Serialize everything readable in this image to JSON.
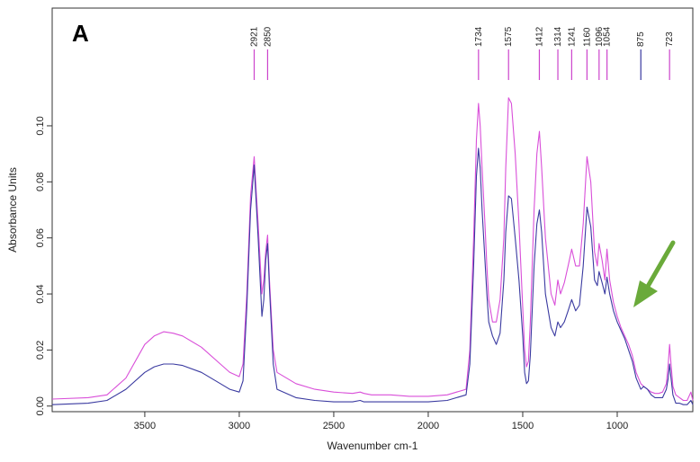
{
  "panel_label": "A",
  "chart_data": {
    "type": "line",
    "xlabel": "Wavenumber cm-1",
    "ylabel": "Absorbance Units",
    "xlim": [
      3990,
      600
    ],
    "ylim": [
      -0.002,
      0.142
    ],
    "x_reversed": true,
    "grid": false,
    "x_ticks": [
      3500,
      3000,
      2500,
      2000,
      1500,
      1000
    ],
    "y_ticks": [
      0.0,
      0.02,
      0.04,
      0.06,
      0.08,
      0.1
    ],
    "y_tick_labels": [
      "0.00",
      "0.02",
      "0.04",
      "0.06",
      "0.08",
      "0.10"
    ],
    "peak_labels": [
      {
        "x": 2921,
        "label": "2921",
        "color": "#cc44cc"
      },
      {
        "x": 2850,
        "label": "2850",
        "color": "#cc44cc"
      },
      {
        "x": 1734,
        "label": "1734",
        "color": "#cc44cc"
      },
      {
        "x": 1575,
        "label": "1575",
        "color": "#cc44cc"
      },
      {
        "x": 1412,
        "label": "1412",
        "color": "#cc44cc"
      },
      {
        "x": 1314,
        "label": "1314",
        "color": "#cc44cc"
      },
      {
        "x": 1241,
        "label": "1241",
        "color": "#cc44cc"
      },
      {
        "x": 1160,
        "label": "1160",
        "color": "#cc44cc"
      },
      {
        "x": 1096,
        "label": "1096",
        "color": "#cc44cc"
      },
      {
        "x": 1054,
        "label": "1054",
        "color": "#cc44cc"
      },
      {
        "x": 875,
        "label": "875",
        "color": "#3a3aa0"
      },
      {
        "x": 723,
        "label": "723",
        "color": "#cc44cc"
      }
    ],
    "series": [
      {
        "color": "#d94fd9",
        "x": [
          3990,
          3800,
          3700,
          3600,
          3500,
          3450,
          3400,
          3350,
          3300,
          3200,
          3100,
          3050,
          3000,
          2980,
          2960,
          2940,
          2921,
          2900,
          2880,
          2870,
          2860,
          2850,
          2840,
          2820,
          2800,
          2700,
          2600,
          2500,
          2400,
          2360,
          2340,
          2300,
          2200,
          2100,
          2000,
          1900,
          1800,
          1780,
          1760,
          1745,
          1734,
          1725,
          1715,
          1700,
          1690,
          1680,
          1660,
          1640,
          1620,
          1600,
          1590,
          1575,
          1560,
          1540,
          1520,
          1500,
          1490,
          1480,
          1470,
          1460,
          1440,
          1425,
          1412,
          1400,
          1380,
          1350,
          1330,
          1314,
          1300,
          1280,
          1260,
          1241,
          1220,
          1200,
          1180,
          1160,
          1140,
          1120,
          1105,
          1096,
          1080,
          1065,
          1054,
          1040,
          1020,
          1000,
          980,
          960,
          940,
          920,
          900,
          875,
          860,
          840,
          820,
          800,
          780,
          760,
          740,
          730,
          723,
          715,
          705,
          690,
          670,
          650,
          630,
          610,
          600
        ],
        "y": [
          0.0025,
          0.003,
          0.004,
          0.01,
          0.022,
          0.025,
          0.0265,
          0.026,
          0.025,
          0.021,
          0.015,
          0.012,
          0.0105,
          0.015,
          0.04,
          0.075,
          0.089,
          0.065,
          0.04,
          0.045,
          0.055,
          0.061,
          0.045,
          0.02,
          0.012,
          0.008,
          0.006,
          0.005,
          0.0045,
          0.005,
          0.0045,
          0.004,
          0.004,
          0.0035,
          0.0035,
          0.004,
          0.006,
          0.02,
          0.06,
          0.095,
          0.108,
          0.1,
          0.085,
          0.065,
          0.05,
          0.038,
          0.03,
          0.03,
          0.038,
          0.06,
          0.085,
          0.11,
          0.108,
          0.09,
          0.065,
          0.035,
          0.02,
          0.014,
          0.016,
          0.03,
          0.07,
          0.09,
          0.098,
          0.085,
          0.06,
          0.04,
          0.036,
          0.045,
          0.04,
          0.044,
          0.05,
          0.056,
          0.05,
          0.05,
          0.065,
          0.089,
          0.08,
          0.055,
          0.05,
          0.058,
          0.052,
          0.045,
          0.056,
          0.045,
          0.037,
          0.032,
          0.028,
          0.025,
          0.022,
          0.018,
          0.012,
          0.008,
          0.007,
          0.006,
          0.005,
          0.0045,
          0.0045,
          0.005,
          0.008,
          0.015,
          0.022,
          0.015,
          0.007,
          0.004,
          0.003,
          0.002,
          0.002,
          0.005,
          0.002
        ]
      },
      {
        "color": "#3a3aa0",
        "x": [
          3990,
          3800,
          3700,
          3600,
          3500,
          3450,
          3400,
          3350,
          3300,
          3200,
          3100,
          3050,
          3000,
          2980,
          2960,
          2940,
          2921,
          2900,
          2880,
          2870,
          2860,
          2850,
          2840,
          2820,
          2800,
          2700,
          2600,
          2500,
          2400,
          2360,
          2340,
          2300,
          2200,
          2100,
          2000,
          1900,
          1800,
          1780,
          1760,
          1745,
          1734,
          1725,
          1715,
          1700,
          1690,
          1680,
          1660,
          1640,
          1620,
          1600,
          1590,
          1575,
          1560,
          1540,
          1520,
          1500,
          1490,
          1480,
          1470,
          1460,
          1440,
          1425,
          1412,
          1400,
          1380,
          1350,
          1330,
          1314,
          1300,
          1280,
          1260,
          1241,
          1220,
          1200,
          1180,
          1160,
          1140,
          1120,
          1105,
          1096,
          1080,
          1065,
          1054,
          1040,
          1020,
          1000,
          980,
          960,
          940,
          920,
          900,
          875,
          860,
          840,
          820,
          800,
          780,
          760,
          740,
          730,
          723,
          715,
          705,
          690,
          670,
          650,
          630,
          610,
          600
        ],
        "y": [
          0.0005,
          0.001,
          0.002,
          0.006,
          0.012,
          0.014,
          0.015,
          0.015,
          0.0145,
          0.012,
          0.008,
          0.006,
          0.005,
          0.009,
          0.035,
          0.07,
          0.086,
          0.06,
          0.032,
          0.038,
          0.052,
          0.058,
          0.042,
          0.015,
          0.006,
          0.003,
          0.002,
          0.0015,
          0.0015,
          0.002,
          0.0015,
          0.0015,
          0.0015,
          0.0015,
          0.0015,
          0.002,
          0.004,
          0.015,
          0.05,
          0.082,
          0.092,
          0.085,
          0.07,
          0.052,
          0.04,
          0.03,
          0.025,
          0.022,
          0.026,
          0.045,
          0.062,
          0.075,
          0.074,
          0.06,
          0.045,
          0.025,
          0.012,
          0.008,
          0.009,
          0.018,
          0.05,
          0.065,
          0.07,
          0.062,
          0.04,
          0.028,
          0.025,
          0.03,
          0.028,
          0.03,
          0.034,
          0.038,
          0.034,
          0.036,
          0.05,
          0.071,
          0.064,
          0.045,
          0.043,
          0.048,
          0.044,
          0.04,
          0.046,
          0.04,
          0.034,
          0.03,
          0.027,
          0.024,
          0.02,
          0.016,
          0.01,
          0.006,
          0.007,
          0.006,
          0.004,
          0.003,
          0.003,
          0.003,
          0.006,
          0.01,
          0.015,
          0.01,
          0.004,
          0.001,
          0.001,
          0.0005,
          0.0005,
          0.002,
          0.0005
        ]
      }
    ]
  },
  "arrow": {
    "color": "#6aaa3a"
  }
}
